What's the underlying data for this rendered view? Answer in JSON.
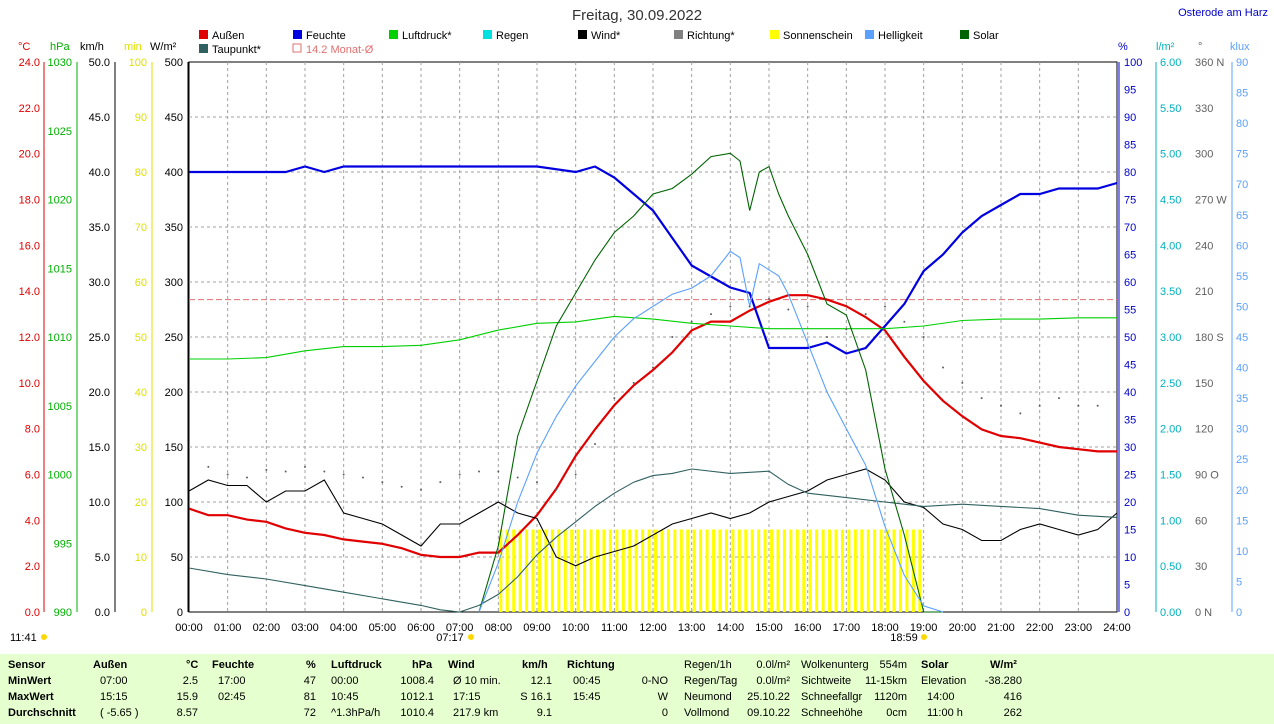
{
  "title": "Freitag, 30.09.2022",
  "location": "Osterode am Harz",
  "time_label": "11:41",
  "sunrise": "07:17",
  "sunset": "18:59",
  "legend": [
    {
      "label": "Außen",
      "color": "#e00000"
    },
    {
      "label": "Feuchte",
      "color": "#0000e0"
    },
    {
      "label": "Luftdruck*",
      "color": "#00d000"
    },
    {
      "label": "Regen",
      "color": "#00e0e0"
    },
    {
      "label": "Wind*",
      "color": "#000000"
    },
    {
      "label": "Richtung*",
      "color": "#808080"
    },
    {
      "label": "Sonnenschein",
      "color": "#ffff00"
    },
    {
      "label": "Helligkeit",
      "color": "#5aa0ff"
    },
    {
      "label": "Solar",
      "color": "#006400"
    },
    {
      "label": "Taupunkt*",
      "color": "#306060"
    },
    {
      "label": "14.2 Monat-Ø",
      "color": "#e07070"
    }
  ],
  "axis_units": {
    "temp": "°C",
    "hpa": "hPa",
    "kmh": "km/h",
    "min": "min",
    "wm2": "W/m²",
    "pct": "%",
    "lm2": "l/m²",
    "deg": "°",
    "klux": "klux"
  },
  "chart_data": {
    "type": "line",
    "xlabel": "",
    "x_ticks": [
      "00:00",
      "01:00",
      "02:00",
      "03:00",
      "04:00",
      "05:00",
      "06:00",
      "07:00",
      "08:00",
      "09:00",
      "10:00",
      "11:00",
      "12:00",
      "13:00",
      "14:00",
      "15:00",
      "16:00",
      "17:00",
      "18:00",
      "19:00",
      "20:00",
      "21:00",
      "22:00",
      "23:00",
      "24:00"
    ],
    "axes": {
      "temp": {
        "ticks": [
          "0.0",
          "2.0",
          "4.0",
          "6.0",
          "8.0",
          "10.0",
          "12.0",
          "14.0",
          "16.0",
          "18.0",
          "20.0",
          "22.0",
          "24.0"
        ],
        "range": [
          0,
          25
        ]
      },
      "hpa": {
        "ticks": [
          "990",
          "995",
          "1000",
          "1005",
          "1010",
          "1015",
          "1020",
          "1025",
          "1030"
        ],
        "range": [
          990,
          1030
        ]
      },
      "kmh": {
        "ticks": [
          "0.0",
          "5.0",
          "10.0",
          "15.0",
          "20.0",
          "25.0",
          "30.0",
          "35.0",
          "40.0",
          "45.0",
          "50.0"
        ],
        "range": [
          0,
          50
        ]
      },
      "min": {
        "ticks": [
          "0",
          "10",
          "20",
          "30",
          "40",
          "50",
          "60",
          "70",
          "80",
          "90",
          "100"
        ],
        "range": [
          0,
          100
        ]
      },
      "wm2": {
        "ticks": [
          "0",
          "50",
          "100",
          "150",
          "200",
          "250",
          "300",
          "350",
          "400",
          "450",
          "500"
        ],
        "range": [
          0,
          500
        ]
      },
      "pct": {
        "ticks": [
          "0",
          "5",
          "10",
          "15",
          "20",
          "25",
          "30",
          "35",
          "40",
          "45",
          "50",
          "55",
          "60",
          "65",
          "70",
          "75",
          "80",
          "85",
          "90",
          "95",
          "100"
        ],
        "range": [
          0,
          100
        ]
      },
      "lm2": {
        "ticks": [
          "0.00",
          "0.50",
          "1.00",
          "1.50",
          "2.00",
          "2.50",
          "3.00",
          "3.50",
          "4.00",
          "4.50",
          "5.00",
          "5.50",
          "6.00"
        ],
        "range": [
          0,
          6
        ]
      },
      "deg": {
        "ticks": [
          "0 N",
          "30",
          "60",
          "90 O",
          "120",
          "150",
          "180 S",
          "210",
          "240",
          "270 W",
          "300",
          "330",
          "360 N"
        ],
        "range": [
          0,
          360
        ]
      },
      "klux": {
        "ticks": [
          "0",
          "5",
          "10",
          "15",
          "20",
          "25",
          "30",
          "35",
          "40",
          "45",
          "50",
          "55",
          "60",
          "65",
          "70",
          "75",
          "80",
          "85",
          "90"
        ],
        "range": [
          0,
          90
        ]
      }
    },
    "series": [
      {
        "name": "Außen",
        "axis": "temp",
        "color": "#e00000",
        "x": [
          0,
          0.5,
          1,
          1.5,
          2,
          2.5,
          3,
          3.5,
          4,
          4.5,
          5,
          5.5,
          6,
          6.5,
          7,
          7.5,
          8,
          8.5,
          9,
          9.5,
          10,
          10.5,
          11,
          11.5,
          12,
          12.5,
          13,
          13.5,
          14,
          14.5,
          15,
          15.5,
          16,
          16.5,
          17,
          17.5,
          18,
          18.5,
          19,
          19.5,
          20,
          20.5,
          21,
          21.5,
          22,
          22.5,
          23,
          23.5,
          24
        ],
        "y": [
          4.7,
          4.4,
          4.4,
          4.2,
          4.1,
          3.8,
          3.6,
          3.5,
          3.3,
          3.2,
          3.1,
          2.9,
          2.6,
          2.5,
          2.5,
          2.7,
          2.7,
          3.5,
          4.4,
          5.6,
          7.1,
          8.3,
          9.4,
          10.3,
          11,
          11.8,
          12.8,
          13.2,
          13.2,
          13.7,
          14.1,
          14.4,
          14.4,
          14.2,
          13.9,
          13.4,
          12.8,
          11.6,
          10.5,
          9.6,
          8.9,
          8.3,
          8.0,
          7.9,
          7.7,
          7.5,
          7.4,
          7.3,
          7.3
        ]
      },
      {
        "name": "Feuchte",
        "axis": "pct",
        "color": "#0000e0",
        "x": [
          0,
          1,
          2,
          2.5,
          3,
          3.5,
          4,
          5,
          6,
          7,
          8,
          9,
          10,
          10.5,
          11,
          11.5,
          12,
          12.5,
          13,
          13.5,
          14,
          14.5,
          15,
          15.5,
          16,
          16.5,
          17,
          17.5,
          18,
          18.5,
          19,
          19.5,
          20,
          20.5,
          21,
          21.5,
          22,
          22.5,
          23,
          23.5,
          24
        ],
        "y": [
          80,
          80,
          80,
          80,
          81,
          80,
          81,
          81,
          81,
          81,
          81,
          81,
          80,
          81,
          79,
          76,
          73,
          68,
          63,
          61,
          59,
          58,
          48,
          48,
          48,
          49,
          47,
          48,
          52,
          56,
          62,
          65,
          69,
          72,
          74,
          76,
          76,
          77,
          77,
          77,
          78
        ]
      },
      {
        "name": "Luftdruck*",
        "axis": "hpa",
        "color": "#00d000",
        "x": [
          0,
          1,
          2,
          3,
          4,
          5,
          6,
          7,
          8,
          9,
          10,
          11,
          12,
          13,
          14,
          15,
          16,
          17,
          18,
          19,
          20,
          21,
          22,
          23,
          24
        ],
        "y": [
          1008.4,
          1008.4,
          1008.5,
          1009.0,
          1009.3,
          1009.3,
          1009.4,
          1009.8,
          1010.5,
          1011.0,
          1011.1,
          1011.5,
          1011.3,
          1011.0,
          1010.8,
          1010.6,
          1010.6,
          1010.6,
          1010.6,
          1010.8,
          1011.2,
          1011.3,
          1011.3,
          1011.4,
          1011.4
        ]
      },
      {
        "name": "Wind*",
        "axis": "kmh",
        "color": "#000000",
        "x": [
          0,
          0.5,
          1,
          1.5,
          2,
          2.5,
          3,
          3.5,
          4,
          4.5,
          5,
          5.5,
          6,
          6.5,
          7,
          7.5,
          8,
          8.5,
          9,
          9.5,
          10,
          10.5,
          11,
          11.5,
          12,
          12.5,
          13,
          13.5,
          14,
          14.5,
          15,
          15.5,
          16,
          16.5,
          17,
          17.5,
          18,
          18.5,
          19,
          19.5,
          20,
          20.5,
          21,
          21.5,
          22,
          22.5,
          23,
          23.5,
          24
        ],
        "y": [
          11,
          12,
          11.5,
          11.5,
          10,
          11,
          11,
          12,
          9,
          8.5,
          8,
          7,
          6,
          8,
          8,
          9,
          10,
          9,
          8.5,
          5,
          4.2,
          5,
          5.5,
          6,
          7,
          8,
          8.5,
          9,
          8.5,
          9,
          10,
          10.5,
          11,
          12,
          12.5,
          13,
          12,
          10,
          9.5,
          8,
          7.5,
          6.5,
          6.5,
          7.5,
          8,
          7.5,
          7,
          7.5,
          9
        ]
      },
      {
        "name": "Taupunkt*",
        "axis": "temp",
        "color": "#306060",
        "x": [
          0,
          1,
          2,
          3,
          4,
          5,
          6,
          6.5,
          7,
          7.5,
          8,
          8.5,
          9,
          9.5,
          10,
          10.5,
          11,
          11.5,
          12,
          12.5,
          13,
          14,
          15,
          15.5,
          16,
          17,
          18,
          19,
          20,
          21,
          22,
          23,
          24
        ],
        "y": [
          2.0,
          1.7,
          1.5,
          1.2,
          0.9,
          0.6,
          0.3,
          0.1,
          0.0,
          0.3,
          0.8,
          1.6,
          2.6,
          3.4,
          4.1,
          4.8,
          5.4,
          5.9,
          6.2,
          6.3,
          6.5,
          6.3,
          6.4,
          5.8,
          5.4,
          5.2,
          5.0,
          4.8,
          4.9,
          4.8,
          4.7,
          4.4,
          4.3
        ]
      },
      {
        "name": "Solar",
        "axis": "wm2",
        "color": "#006400",
        "x": [
          7.5,
          8,
          8.5,
          9,
          9.5,
          10,
          10.5,
          11,
          11.5,
          12,
          12.5,
          13,
          13.5,
          14,
          14.25,
          14.5,
          14.75,
          15,
          15.25,
          15.5,
          16,
          16.5,
          17,
          17.5,
          18,
          18.5,
          19,
          19.5
        ],
        "y": [
          0,
          60,
          160,
          210,
          260,
          290,
          320,
          345,
          360,
          380,
          385,
          398,
          414,
          417,
          410,
          365,
          400,
          405,
          380,
          360,
          325,
          280,
          270,
          220,
          130,
          70,
          0,
          0
        ]
      },
      {
        "name": "Helligkeit",
        "axis": "klux",
        "color": "#5aa0ff",
        "x": [
          7.5,
          8,
          8.5,
          9,
          9.5,
          10,
          10.5,
          11,
          11.5,
          12,
          12.5,
          13,
          13.5,
          14,
          14.25,
          14.5,
          14.75,
          15,
          15.25,
          15.5,
          16,
          16.5,
          17,
          17.5,
          18,
          18.5,
          19,
          19.5
        ],
        "y": [
          0,
          8,
          18,
          26,
          32,
          37,
          41,
          45,
          48,
          50,
          52,
          53,
          55,
          59,
          58,
          50,
          57,
          56,
          55,
          52,
          44,
          36,
          30,
          24,
          14,
          6,
          1,
          0
        ]
      }
    ],
    "dotted_series": [
      {
        "name": "Richtung*",
        "axis": "deg",
        "color": "#606060",
        "x": [
          0.5,
          1,
          1.5,
          2,
          2.5,
          3,
          3.5,
          4,
          4.5,
          5,
          5.5,
          6,
          6.5,
          7,
          7.5,
          8,
          8.5,
          9,
          9.5,
          10,
          10.5,
          11,
          11.5,
          12,
          12.5,
          13,
          13.5,
          14,
          14.5,
          15,
          15.5,
          16,
          16.5,
          17,
          17.5,
          18,
          18.5,
          19,
          19.5,
          20,
          20.5,
          21,
          21.5,
          22,
          22.5,
          23,
          23.5
        ],
        "y": [
          95,
          90,
          88,
          93,
          92,
          95,
          92,
          90,
          88,
          85,
          82,
          80,
          85,
          90,
          92,
          92,
          88,
          85,
          80,
          90,
          110,
          140,
          150,
          160,
          180,
          190,
          195,
          200,
          200,
          205,
          198,
          200,
          180,
          185,
          195,
          200,
          190,
          180,
          160,
          150,
          140,
          135,
          130,
          135,
          140,
          135,
          135
        ]
      }
    ],
    "month_avg_temp": 14.2,
    "sunshine": {
      "start": 8.0,
      "end": 19.0,
      "step_hours": 0.1667
    },
    "grid": true
  },
  "table": {
    "headers": {
      "sensor": "Sensor",
      "aussen": "Außen",
      "aussen_unit": "°C",
      "feuchte": "Feuchte",
      "feuchte_unit": "%",
      "luftdruck": "Luftdruck",
      "luftdruck_unit": "hPa",
      "wind": "Wind",
      "wind_unit": "km/h",
      "richtung": "Richtung",
      "solar": "Solar",
      "solar_unit": "W/m²"
    },
    "rows": [
      {
        "label": "MinWert",
        "a_t": "07:00",
        "a_v": "2.5",
        "f_t": "17:00",
        "f_v": "47",
        "l_t": "00:00",
        "l_v": "1008.4",
        "w_t": "Ø 10 min.",
        "w_v": "12.1",
        "r_t": "00:45",
        "r_v": "0-NO"
      },
      {
        "label": "MaxWert",
        "a_t": "15:15",
        "a_v": "15.9",
        "f_t": "02:45",
        "f_v": "81",
        "l_t": "10:45",
        "l_v": "1012.1",
        "w_t": "17:15",
        "w_v": "S 16.1",
        "r_t": "15:45",
        "r_v": "W"
      },
      {
        "label": "Durchschnitt",
        "a_t": "( -5.65 )",
        "a_v": "8.57",
        "f_t": "",
        "f_v": "72",
        "l_t": "^1.3hPa/h",
        "l_v": "1010.4",
        "w_t": "217.9 km",
        "w_v": "9.1",
        "r_t": "",
        "r_v": "0"
      }
    ],
    "extra": [
      {
        "k": "Regen/1h",
        "v": "0.0l/m²",
        "k2": "Wolkenunterg",
        "v2": "554m"
      },
      {
        "k": "Regen/Tag",
        "v": "0.0l/m²",
        "k2": "Sichtweite",
        "v2": "11-15km"
      },
      {
        "k": "Neumond",
        "v": "25.10.22",
        "k2": "Schneefallgr",
        "v2": "1120m"
      },
      {
        "k": "Vollmond",
        "v": "09.10.22",
        "k2": "Schneehöhe",
        "v2": "0cm"
      }
    ],
    "solar_rows": [
      {
        "k": "14:00",
        "v": "416"
      },
      {
        "k": "11:00 h",
        "v": "262"
      }
    ],
    "solar_elevation": {
      "k": "Elevation",
      "v": "-38.280"
    }
  }
}
